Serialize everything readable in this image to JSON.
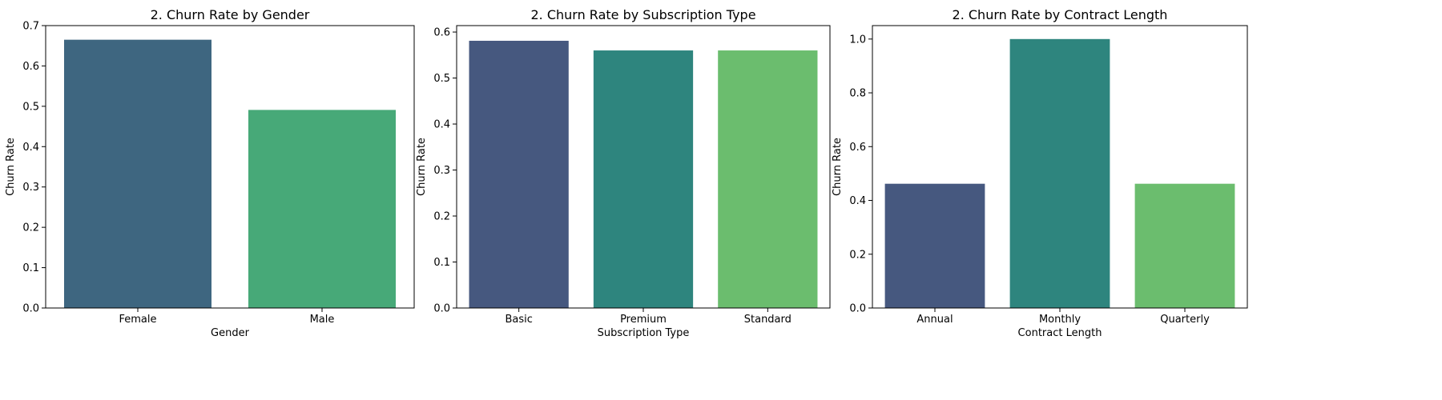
{
  "chart_data": [
    {
      "type": "bar",
      "title": "2. Churn Rate by Gender",
      "xlabel": "Gender",
      "ylabel": "Churn Rate",
      "categories": [
        "Female",
        "Male"
      ],
      "values": [
        0.665,
        0.491
      ],
      "colors": [
        "#3e6680",
        "#47a978"
      ],
      "ylim": [
        0,
        0.7
      ],
      "yticks": [
        0.0,
        0.1,
        0.2,
        0.3,
        0.4,
        0.5,
        0.6,
        0.7
      ],
      "ytick_labels": [
        "0.0",
        "0.1",
        "0.2",
        "0.3",
        "0.4",
        "0.5",
        "0.6",
        "0.7"
      ],
      "grid": false
    },
    {
      "type": "bar",
      "title": "2. Churn Rate by Subscription Type",
      "xlabel": "Subscription Type",
      "ylabel": "Churn Rate",
      "categories": [
        "Basic",
        "Premium",
        "Standard"
      ],
      "values": [
        0.581,
        0.56,
        0.56
      ],
      "colors": [
        "#46587f",
        "#2e857e",
        "#6bbd6e"
      ],
      "ylim": [
        0,
        0.614
      ],
      "yticks": [
        0.0,
        0.1,
        0.2,
        0.3,
        0.4,
        0.5,
        0.6
      ],
      "ytick_labels": [
        "0.0",
        "0.1",
        "0.2",
        "0.3",
        "0.4",
        "0.5",
        "0.6"
      ],
      "grid": false
    },
    {
      "type": "bar",
      "title": "2. Churn Rate by Contract Length",
      "xlabel": "Contract Length",
      "ylabel": "Churn Rate",
      "categories": [
        "Annual",
        "Monthly",
        "Quarterly"
      ],
      "values": [
        0.462,
        1.0,
        0.462
      ],
      "colors": [
        "#46587f",
        "#2e857e",
        "#6bbd6e"
      ],
      "ylim": [
        0,
        1.05
      ],
      "yticks": [
        0.0,
        0.2,
        0.4,
        0.6,
        0.8,
        1.0
      ],
      "ytick_labels": [
        "0.0",
        "0.2",
        "0.4",
        "0.6",
        "0.8",
        "1.0"
      ],
      "grid": false
    }
  ]
}
